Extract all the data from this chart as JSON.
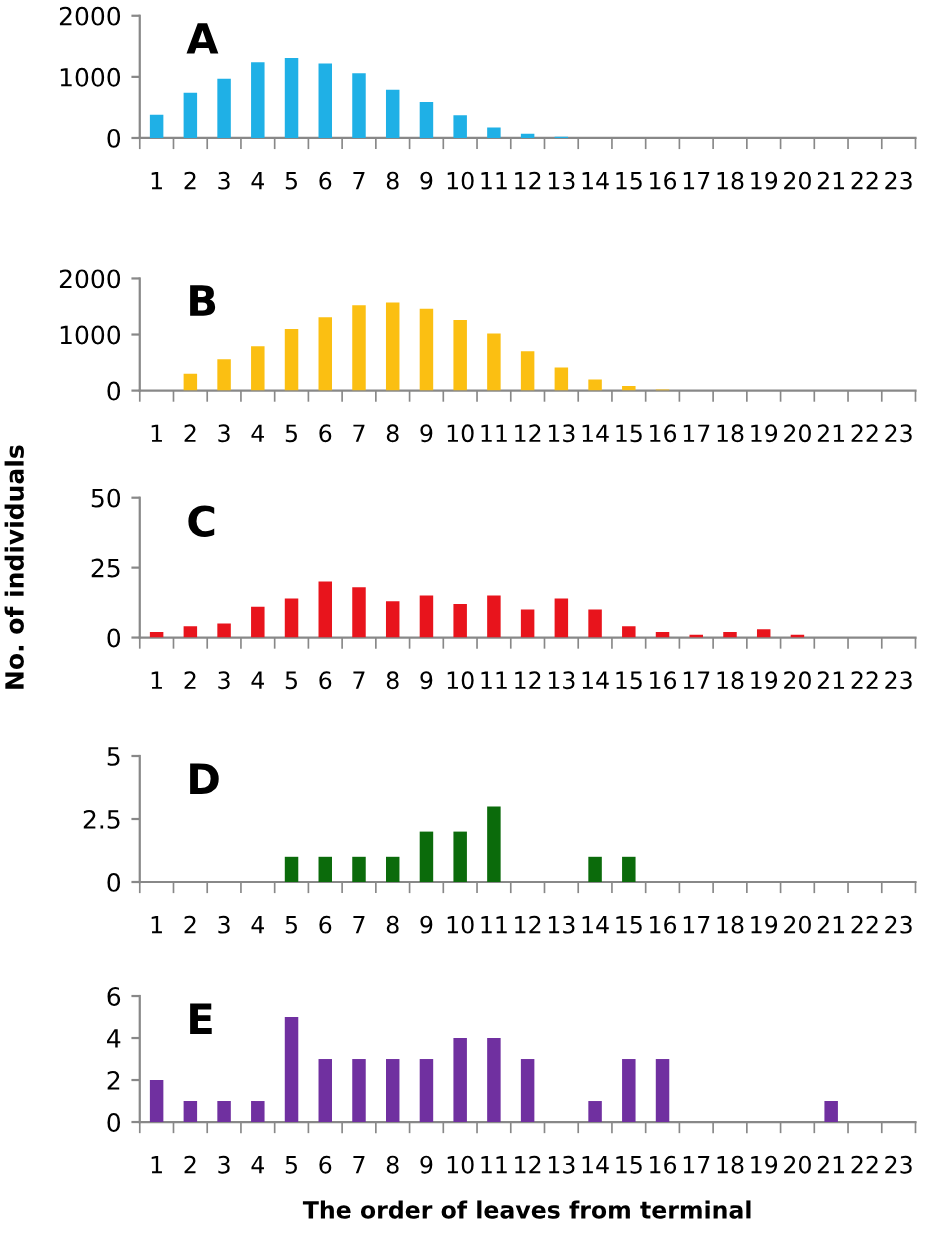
{
  "chart_data": [
    {
      "type": "bar",
      "title": "A",
      "categories": [
        "1",
        "2",
        "3",
        "4",
        "5",
        "6",
        "7",
        "8",
        "9",
        "10",
        "11",
        "12",
        "13",
        "14",
        "15",
        "16",
        "17",
        "18",
        "19",
        "20",
        "21",
        "22",
        "23"
      ],
      "values": [
        380,
        740,
        970,
        1240,
        1310,
        1220,
        1060,
        790,
        590,
        370,
        170,
        70,
        20,
        0,
        0,
        0,
        0,
        0,
        0,
        0,
        0,
        0,
        0
      ],
      "color": "#1fb0e6",
      "ylim": [
        0,
        2000
      ],
      "yticks": [
        0,
        1000,
        2000
      ],
      "grid": false
    },
    {
      "type": "bar",
      "title": "B",
      "categories": [
        "1",
        "2",
        "3",
        "4",
        "5",
        "6",
        "7",
        "8",
        "9",
        "10",
        "11",
        "12",
        "13",
        "14",
        "15",
        "16",
        "17",
        "18",
        "19",
        "20",
        "21",
        "22",
        "23"
      ],
      "values": [
        0,
        300,
        560,
        790,
        1100,
        1310,
        1520,
        1570,
        1460,
        1260,
        1020,
        700,
        410,
        200,
        80,
        20,
        0,
        0,
        0,
        0,
        0,
        0,
        0
      ],
      "color": "#fbbf12",
      "ylim": [
        0,
        2000
      ],
      "yticks": [
        0,
        1000,
        2000
      ],
      "grid": false
    },
    {
      "type": "bar",
      "title": "C",
      "ylabel": "No. of individuals",
      "categories": [
        "1",
        "2",
        "3",
        "4",
        "5",
        "6",
        "7",
        "8",
        "9",
        "10",
        "11",
        "12",
        "13",
        "14",
        "15",
        "16",
        "17",
        "18",
        "19",
        "20",
        "21",
        "22",
        "23"
      ],
      "values": [
        2,
        4,
        5,
        11,
        14,
        20,
        18,
        13,
        15,
        12,
        15,
        10,
        14,
        10,
        4,
        2,
        1,
        2,
        3,
        1,
        0,
        0,
        0
      ],
      "color": "#e8141c",
      "ylim": [
        0,
        50
      ],
      "yticks": [
        0,
        25,
        50
      ],
      "grid": false
    },
    {
      "type": "bar",
      "title": "D",
      "categories": [
        "1",
        "2",
        "3",
        "4",
        "5",
        "6",
        "7",
        "8",
        "9",
        "10",
        "11",
        "12",
        "13",
        "14",
        "15",
        "16",
        "17",
        "18",
        "19",
        "20",
        "21",
        "22",
        "23"
      ],
      "values": [
        0,
        0,
        0,
        0,
        1,
        1,
        1,
        1,
        2,
        2,
        3,
        0,
        0,
        1,
        1,
        0,
        0,
        0,
        0,
        0,
        0,
        0,
        0
      ],
      "color": "#0b6b0b",
      "ylim": [
        0,
        5
      ],
      "yticks": [
        0,
        2.5,
        5
      ],
      "grid": false
    },
    {
      "type": "bar",
      "title": "E",
      "xlabel": "The order of leaves from terminal",
      "categories": [
        "1",
        "2",
        "3",
        "4",
        "5",
        "6",
        "7",
        "8",
        "9",
        "10",
        "11",
        "12",
        "13",
        "14",
        "15",
        "16",
        "17",
        "18",
        "19",
        "20",
        "21",
        "22",
        "23"
      ],
      "values": [
        2,
        1,
        1,
        1,
        5,
        3,
        3,
        3,
        3,
        4,
        4,
        3,
        0,
        1,
        3,
        3,
        0,
        0,
        0,
        0,
        1,
        0,
        0
      ],
      "color": "#7030a0",
      "ylim": [
        0,
        6
      ],
      "yticks": [
        0,
        2,
        4,
        6
      ],
      "grid": false
    }
  ]
}
